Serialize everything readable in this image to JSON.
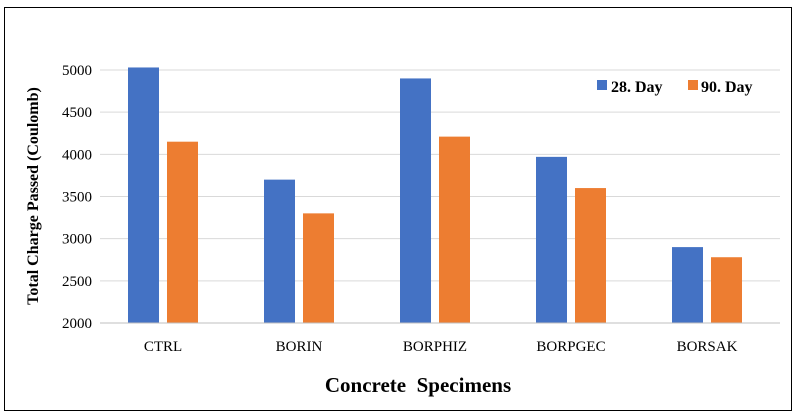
{
  "chart_data": {
    "type": "bar",
    "title": "",
    "xlabel": "Concrete  Specimens",
    "ylabel": "Total Charge Passed (Coulomb)",
    "categories": [
      "CTRL",
      "BORIN",
      "BORPHIZ",
      "BORPGEC",
      "BORSAK"
    ],
    "series": [
      {
        "name": "28. Day",
        "color": "#4472c4",
        "values": [
          5030,
          3700,
          4900,
          3970,
          2900
        ]
      },
      {
        "name": "90. Day",
        "color": "#ed7d31",
        "values": [
          4150,
          3300,
          4210,
          3600,
          2780
        ]
      }
    ],
    "ylim": [
      2000,
      5000
    ],
    "yticks": [
      2000,
      2500,
      3000,
      3500,
      4000,
      4500,
      5000
    ],
    "grid": true,
    "legend_position": "top-right"
  }
}
